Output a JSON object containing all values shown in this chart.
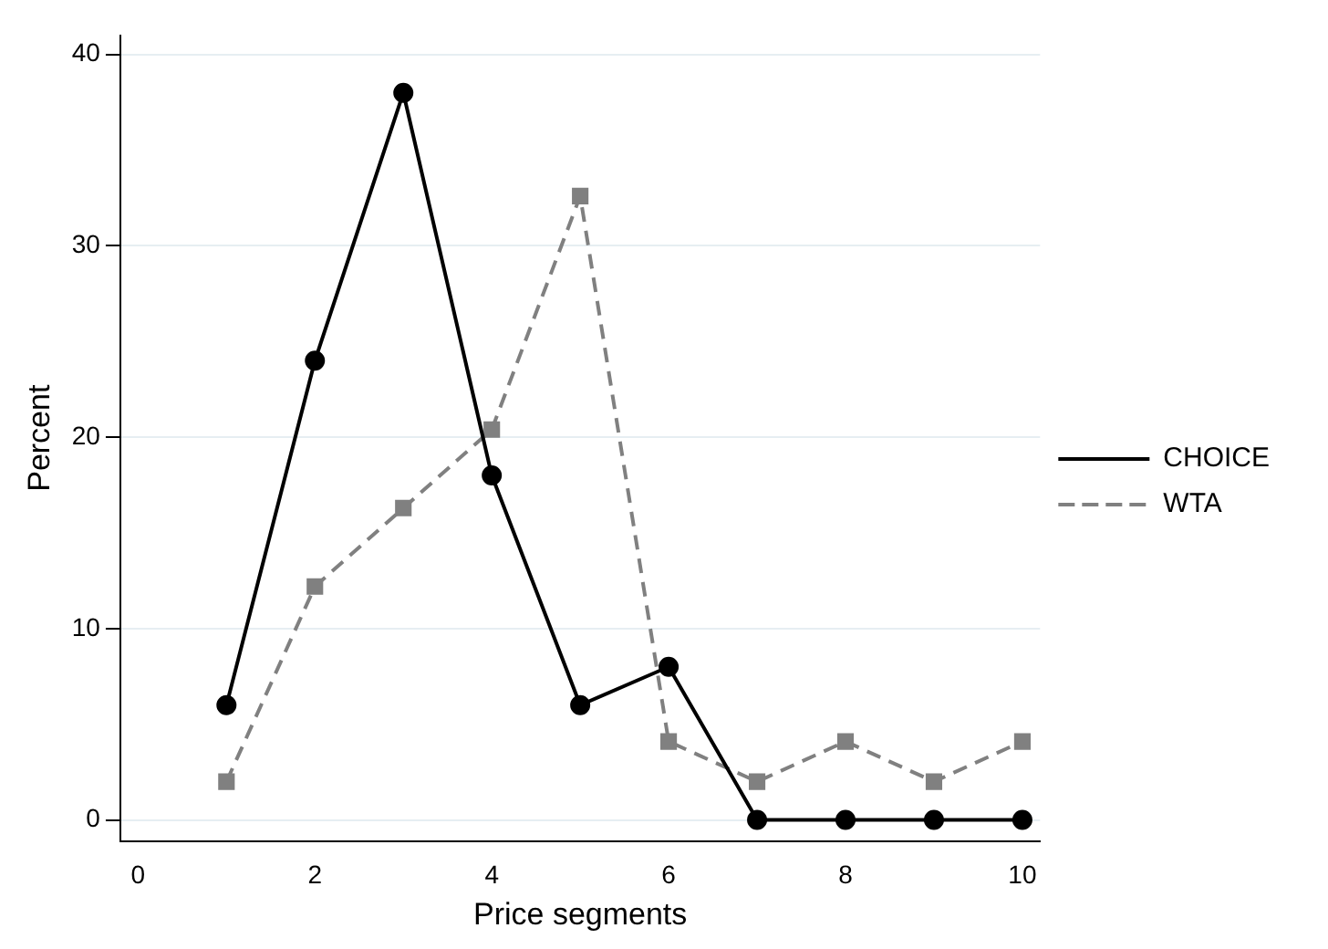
{
  "chart_data": {
    "type": "line",
    "xlabel": "Price segments",
    "ylabel": "Percent",
    "x": [
      1,
      2,
      3,
      4,
      5,
      6,
      7,
      8,
      9,
      10
    ],
    "xlim": [
      -0.2,
      10.2
    ],
    "xticks": [
      0,
      2,
      4,
      6,
      8,
      10
    ],
    "ylim": [
      -1.1,
      41
    ],
    "yticks": [
      0,
      10,
      20,
      30,
      40
    ],
    "grid": "y",
    "legend": "right",
    "series": [
      {
        "name": "CHOICE",
        "color": "#000000",
        "marker": "circle",
        "line_style": "solid",
        "values": [
          6,
          24,
          38,
          18,
          6,
          8,
          0,
          0,
          0,
          0
        ]
      },
      {
        "name": "WTA",
        "color": "#808080",
        "marker": "square",
        "line_style": "dashed",
        "values": [
          2,
          12.2,
          16.3,
          20.4,
          32.6,
          4.1,
          2,
          4.1,
          2,
          4.1
        ]
      }
    ]
  }
}
